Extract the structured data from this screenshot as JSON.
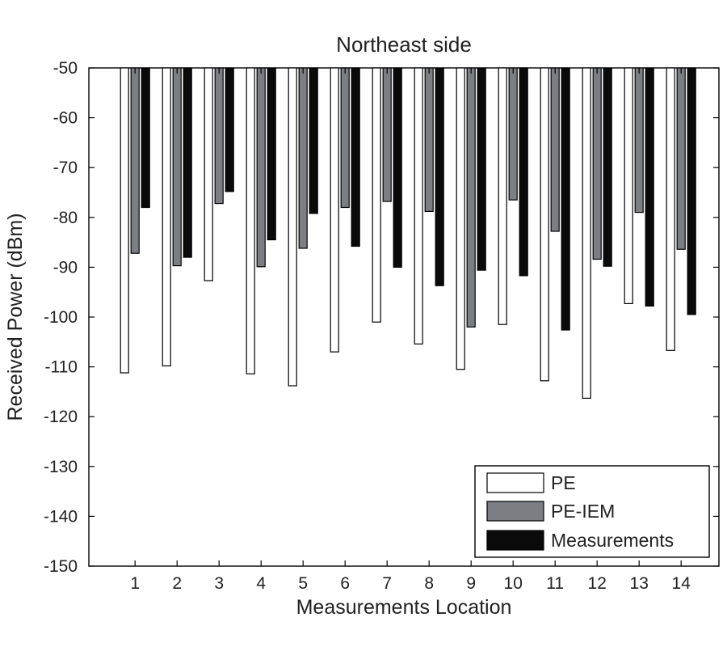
{
  "chart_data": {
    "type": "bar",
    "title": "Northeast side",
    "xlabel": "Measurements Location",
    "ylabel": "Received Power (dBm)",
    "categories": [
      "1",
      "2",
      "3",
      "4",
      "5",
      "6",
      "7",
      "8",
      "9",
      "10",
      "11",
      "12",
      "13",
      "14"
    ],
    "baseline": -50,
    "ylim": [
      -150,
      -50
    ],
    "yticks": [
      "-50",
      "-60",
      "-70",
      "-80",
      "-90",
      "-100",
      "-110",
      "-120",
      "-130",
      "-140",
      "-150"
    ],
    "xlim": [
      -0.1,
      14.9
    ],
    "series": [
      {
        "name": "PE",
        "color": "#ffffff",
        "values": [
          -111.2,
          -109.8,
          -92.7,
          -111.4,
          -113.8,
          -107.0,
          -101.0,
          -105.4,
          -110.5,
          -101.5,
          -112.8,
          -116.3,
          -97.3,
          -106.7
        ]
      },
      {
        "name": "PE-IEM",
        "color": "#7b7f84",
        "values": [
          -87.2,
          -89.7,
          -77.2,
          -89.9,
          -86.2,
          -78.0,
          -76.8,
          -78.8,
          -102.0,
          -76.5,
          -82.8,
          -88.4,
          -79.0,
          -86.4
        ]
      },
      {
        "name": "Measurements",
        "color": "#0a0a0a",
        "values": [
          -78.0,
          -88.0,
          -74.8,
          -84.5,
          -79.2,
          -85.8,
          -90.0,
          -93.7,
          -90.6,
          -91.7,
          -102.6,
          -89.8,
          -97.8,
          -99.5
        ]
      }
    ],
    "legend_position": "bottom-right",
    "grid": false
  }
}
